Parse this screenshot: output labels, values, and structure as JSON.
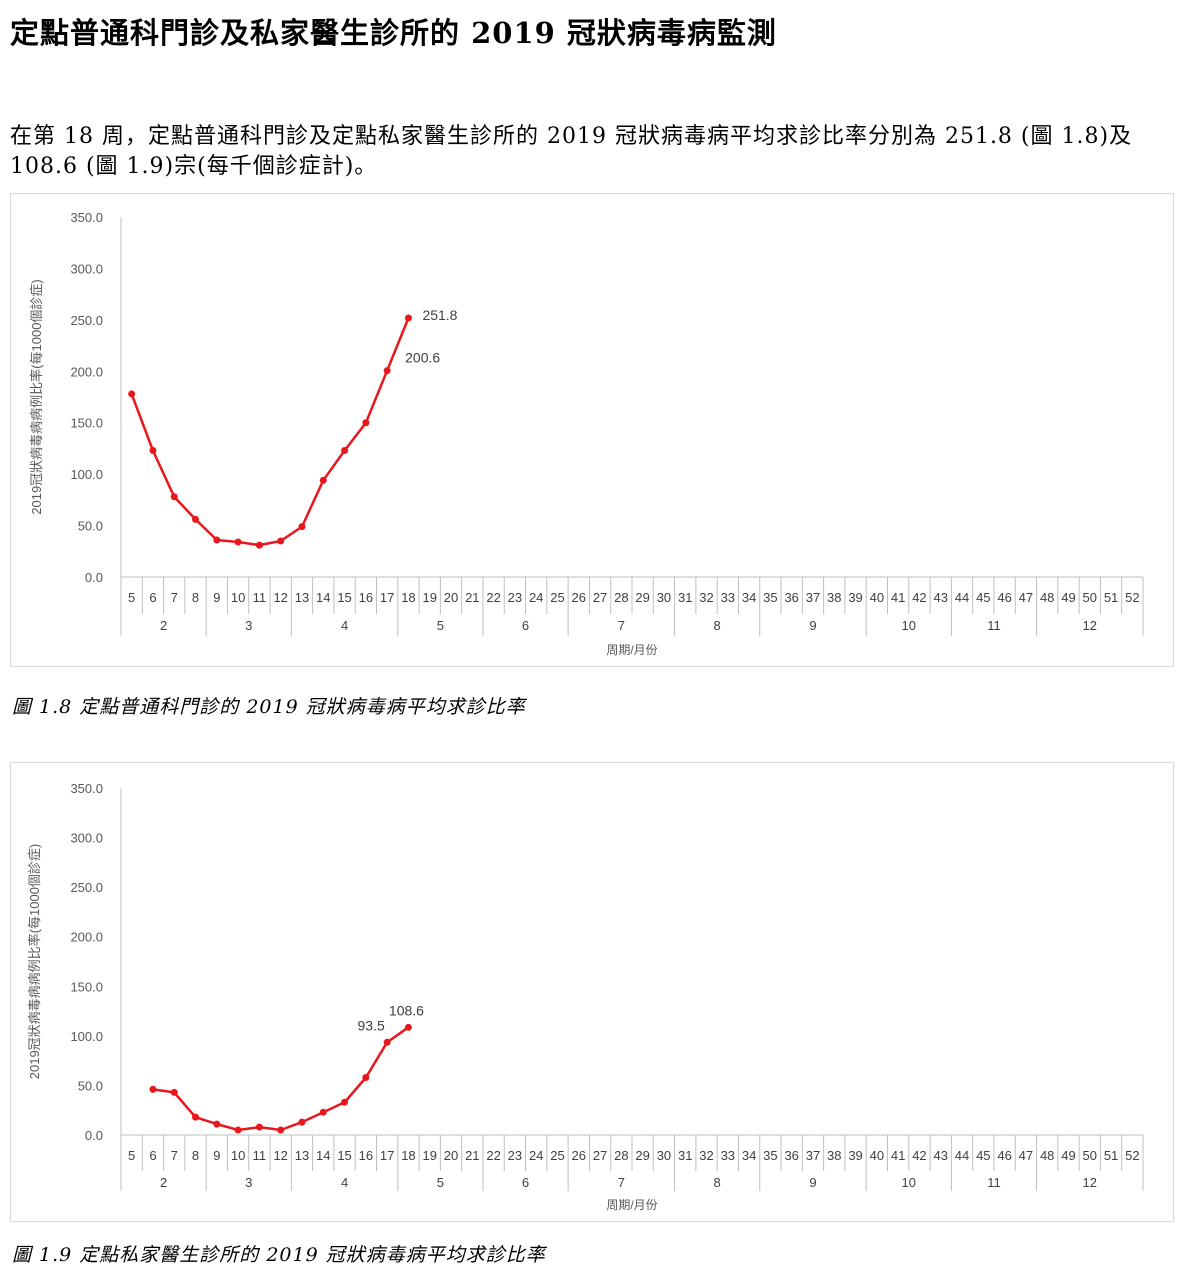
{
  "page": {
    "title": "定點普通科門診及私家醫生診所的 2019 冠狀病毒病監測",
    "paragraph": "在第 18 周，定點普通科門診及定點私家醫生診所的 2019 冠狀病毒病平均求診比率分別為 251.8 (圖 1.8)及 108.6 (圖 1.9)宗(每千個診症計)。"
  },
  "figures": [
    {
      "caption": "圖 1.8 定點普通科門診的 2019 冠狀病毒病平均求診比率"
    },
    {
      "caption": "圖 1.9 定點私家醫生診所的 2019 冠狀病毒病平均求診比率"
    }
  ],
  "chart_data": [
    {
      "type": "line",
      "title": "",
      "ylabel": "2019冠狀病毒病病例比率(每1000個診症)",
      "xlabel": "周期/月份",
      "ylim": [
        0,
        350
      ],
      "yticks": [
        "0.0",
        "50.0",
        "100.0",
        "150.0",
        "200.0",
        "250.0",
        "300.0",
        "350.0"
      ],
      "weeks": [
        "5",
        "6",
        "7",
        "8",
        "9",
        "10",
        "11",
        "12",
        "13",
        "14",
        "15",
        "16",
        "17",
        "18",
        "19",
        "20",
        "21",
        "22",
        "23",
        "24",
        "25",
        "26",
        "27",
        "28",
        "29",
        "30",
        "31",
        "32",
        "33",
        "34",
        "35",
        "36",
        "37",
        "38",
        "39",
        "40",
        "41",
        "42",
        "43",
        "44",
        "45",
        "46",
        "47",
        "48",
        "49",
        "50",
        "51",
        "52"
      ],
      "months": [
        {
          "label": "2",
          "weeks": 4
        },
        {
          "label": "3",
          "weeks": 4
        },
        {
          "label": "4",
          "weeks": 5
        },
        {
          "label": "5",
          "weeks": 4
        },
        {
          "label": "6",
          "weeks": 4
        },
        {
          "label": "7",
          "weeks": 5
        },
        {
          "label": "8",
          "weeks": 4
        },
        {
          "label": "9",
          "weeks": 5
        },
        {
          "label": "10",
          "weeks": 4
        },
        {
          "label": "11",
          "weeks": 4
        },
        {
          "label": "12",
          "weeks": 5
        }
      ],
      "grid": false,
      "color": "#e8171c",
      "series": [
        {
          "x": [
            5,
            6,
            7,
            8,
            9,
            10,
            11,
            12,
            13,
            14,
            15,
            16,
            17,
            18
          ],
          "values": [
            178,
            123,
            78,
            56,
            36,
            34,
            31,
            35,
            49,
            94,
            123,
            150,
            200.6,
            251.8
          ]
        }
      ],
      "data_labels": [
        {
          "week": 17,
          "text": "200.6"
        },
        {
          "week": 18,
          "text": "251.8"
        }
      ]
    },
    {
      "type": "line",
      "title": "",
      "ylabel": "2019冠狀病毒病病例比率(每1000個診症)",
      "xlabel": "周期/月份",
      "ylim": [
        0,
        350
      ],
      "yticks": [
        "0.0",
        "50.0",
        "100.0",
        "150.0",
        "200.0",
        "250.0",
        "300.0",
        "350.0"
      ],
      "weeks": [
        "5",
        "6",
        "7",
        "8",
        "9",
        "10",
        "11",
        "12",
        "13",
        "14",
        "15",
        "16",
        "17",
        "18",
        "19",
        "20",
        "21",
        "22",
        "23",
        "24",
        "25",
        "26",
        "27",
        "28",
        "29",
        "30",
        "31",
        "32",
        "33",
        "34",
        "35",
        "36",
        "37",
        "38",
        "39",
        "40",
        "41",
        "42",
        "43",
        "44",
        "45",
        "46",
        "47",
        "48",
        "49",
        "50",
        "51",
        "52"
      ],
      "months": [
        {
          "label": "2",
          "weeks": 4
        },
        {
          "label": "3",
          "weeks": 4
        },
        {
          "label": "4",
          "weeks": 5
        },
        {
          "label": "5",
          "weeks": 4
        },
        {
          "label": "6",
          "weeks": 4
        },
        {
          "label": "7",
          "weeks": 5
        },
        {
          "label": "8",
          "weeks": 4
        },
        {
          "label": "9",
          "weeks": 5
        },
        {
          "label": "10",
          "weeks": 4
        },
        {
          "label": "11",
          "weeks": 4
        },
        {
          "label": "12",
          "weeks": 5
        }
      ],
      "grid": false,
      "color": "#e8171c",
      "series": [
        {
          "x": [
            6,
            7,
            8,
            9,
            10,
            11,
            12,
            13,
            14,
            15,
            16,
            17,
            18
          ],
          "values": [
            46,
            43,
            18,
            11,
            5,
            8,
            5,
            13,
            23,
            33,
            58,
            93.5,
            108.6
          ]
        }
      ],
      "data_labels": [
        {
          "week": 17,
          "text": "93.5"
        },
        {
          "week": 18,
          "text": "108.6"
        }
      ]
    }
  ]
}
